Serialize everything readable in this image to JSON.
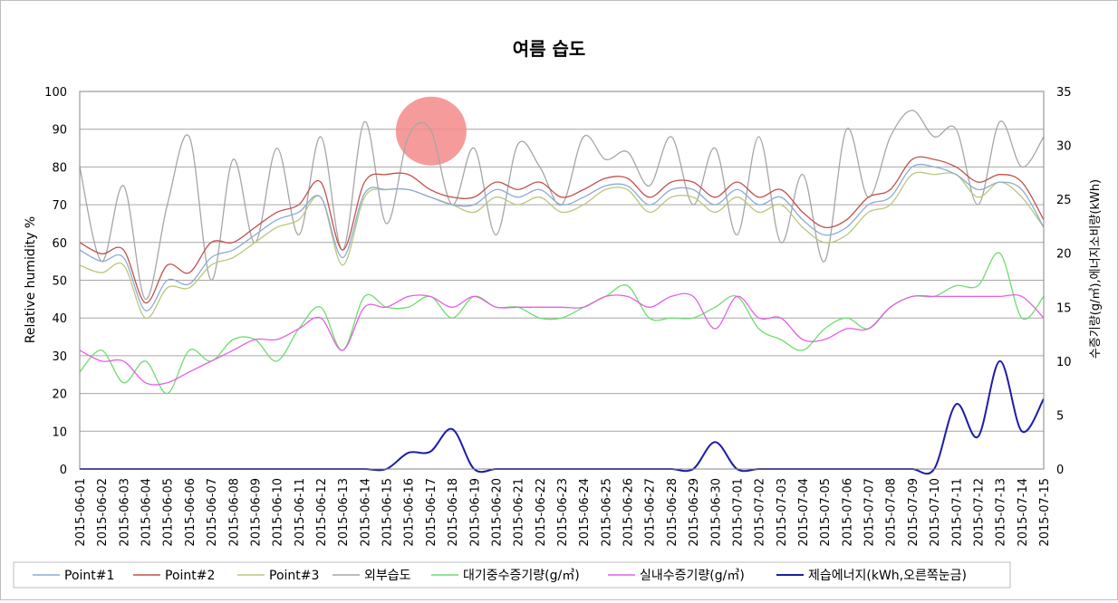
{
  "chart_data": {
    "type": "line",
    "title": "여름 습도",
    "ylabel": "Relative humidity %",
    "ylabel_right": "수증기량(g/㎥),에너지소비량(kWh)",
    "ylim": [
      0,
      100
    ],
    "ylim_right": [
      0,
      35
    ],
    "yticks": [
      "0",
      "10",
      "20",
      "30",
      "40",
      "50",
      "60",
      "70",
      "80",
      "90",
      "100"
    ],
    "yticks_right": [
      "0",
      "5",
      "10",
      "15",
      "20",
      "25",
      "30",
      "35"
    ],
    "grid": true,
    "legend_position": "bottom",
    "colors": {
      "point1": "#8eaad3",
      "point2": "#c0504d",
      "point3": "#b9c77e",
      "outdoor": "#a6a6a6",
      "vapor_out": "#6fdc6f",
      "vapor_in": "#e65ee6",
      "energy": "#1c1ca8",
      "highlight": "#f58a8a"
    },
    "categories": [
      "2015-06-01",
      "2015-06-02",
      "2015-06-03",
      "2015-06-04",
      "2015-06-05",
      "2015-06-06",
      "2015-06-07",
      "2015-06-08",
      "2015-06-09",
      "2015-06-10",
      "2015-06-11",
      "2015-06-12",
      "2015-06-13",
      "2015-06-14",
      "2015-06-15",
      "2015-06-16",
      "2015-06-17",
      "2015-06-18",
      "2015-06-19",
      "2015-06-20",
      "2015-06-21",
      "2015-06-22",
      "2015-06-23",
      "2015-06-24",
      "2015-06-25",
      "2015-06-26",
      "2015-06-27",
      "2015-06-28",
      "2015-06-29",
      "2015-06-30",
      "2015-07-01",
      "2015-07-02",
      "2015-07-03",
      "2015-07-04",
      "2015-07-05",
      "2015-07-06",
      "2015-07-07",
      "2015-07-08",
      "2015-07-09",
      "2015-07-10",
      "2015-07-11",
      "2015-07-12",
      "2015-07-13",
      "2015-07-14",
      "2015-07-15"
    ],
    "series": [
      {
        "key": "point1",
        "name": "Point#1",
        "axis": "left",
        "values": [
          58,
          55,
          56,
          42,
          50,
          49,
          56,
          58,
          62,
          66,
          68,
          72,
          56,
          73,
          74,
          74,
          72,
          70,
          70,
          74,
          72,
          74,
          70,
          72,
          75,
          75,
          70,
          74,
          74,
          70,
          74,
          70,
          72,
          66,
          62,
          64,
          70,
          72,
          80,
          80,
          78,
          74,
          76,
          74,
          64
        ]
      },
      {
        "key": "point2",
        "name": "Point#2",
        "axis": "left",
        "values": [
          60,
          57,
          58,
          44,
          54,
          52,
          60,
          60,
          64,
          68,
          70,
          76,
          58,
          76,
          78,
          78,
          74,
          72,
          72,
          76,
          74,
          76,
          72,
          74,
          77,
          77,
          72,
          76,
          76,
          72,
          76,
          72,
          74,
          68,
          64,
          66,
          72,
          74,
          82,
          82,
          80,
          76,
          78,
          76,
          66
        ]
      },
      {
        "key": "point3",
        "name": "Point#3",
        "axis": "left",
        "values": [
          54,
          52,
          54,
          40,
          48,
          48,
          54,
          56,
          60,
          64,
          66,
          72,
          54,
          72,
          74,
          74,
          72,
          70,
          68,
          72,
          70,
          72,
          68,
          70,
          74,
          74,
          68,
          72,
          72,
          68,
          72,
          68,
          70,
          64,
          60,
          62,
          68,
          70,
          78,
          78,
          78,
          72,
          76,
          72,
          64
        ]
      },
      {
        "key": "outdoor",
        "name": "외부습도",
        "axis": "left",
        "values": [
          80,
          55,
          75,
          45,
          70,
          88,
          50,
          82,
          60,
          85,
          62,
          88,
          58,
          92,
          65,
          88,
          90,
          70,
          85,
          62,
          86,
          80,
          70,
          88,
          82,
          84,
          75,
          88,
          70,
          85,
          62,
          88,
          60,
          78,
          55,
          90,
          72,
          88,
          95,
          88,
          90,
          70,
          92,
          80,
          88
        ]
      },
      {
        "key": "vapor_out",
        "name": "대기중수증기량(g/㎥)",
        "axis": "right",
        "values": [
          9,
          11,
          8,
          10,
          7,
          11,
          10,
          12,
          12,
          10,
          13,
          15,
          11,
          16,
          15,
          15,
          16,
          14,
          16,
          15,
          15,
          14,
          14,
          15,
          16,
          17,
          14,
          14,
          14,
          15,
          16,
          13,
          12,
          11,
          13,
          14,
          13,
          15,
          16,
          16,
          17,
          17,
          20,
          14,
          16
        ]
      },
      {
        "key": "vapor_in",
        "name": "실내수증기량(g/㎥)",
        "axis": "right",
        "values": [
          11,
          10,
          10,
          8,
          8,
          9,
          10,
          11,
          12,
          12,
          13,
          14,
          11,
          15,
          15,
          16,
          16,
          15,
          16,
          15,
          15,
          15,
          15,
          15,
          16,
          16,
          15,
          16,
          16,
          13,
          16,
          14,
          14,
          12,
          12,
          13,
          13,
          15,
          16,
          16,
          16,
          16,
          16,
          16,
          14
        ]
      },
      {
        "key": "energy",
        "name": "제습에너지(kWh,오른쪽눈금)",
        "axis": "right",
        "values": [
          0,
          0,
          0,
          0,
          0,
          0,
          0,
          0,
          0,
          0,
          0,
          0,
          0,
          0,
          0,
          1.5,
          1.6,
          3.7,
          0,
          0,
          0,
          0,
          0,
          0,
          0,
          0,
          0,
          0,
          0,
          2.5,
          0,
          0,
          0,
          0,
          0,
          0,
          0,
          0,
          0,
          0,
          6,
          3,
          10,
          3.5,
          6.5
        ]
      }
    ]
  }
}
